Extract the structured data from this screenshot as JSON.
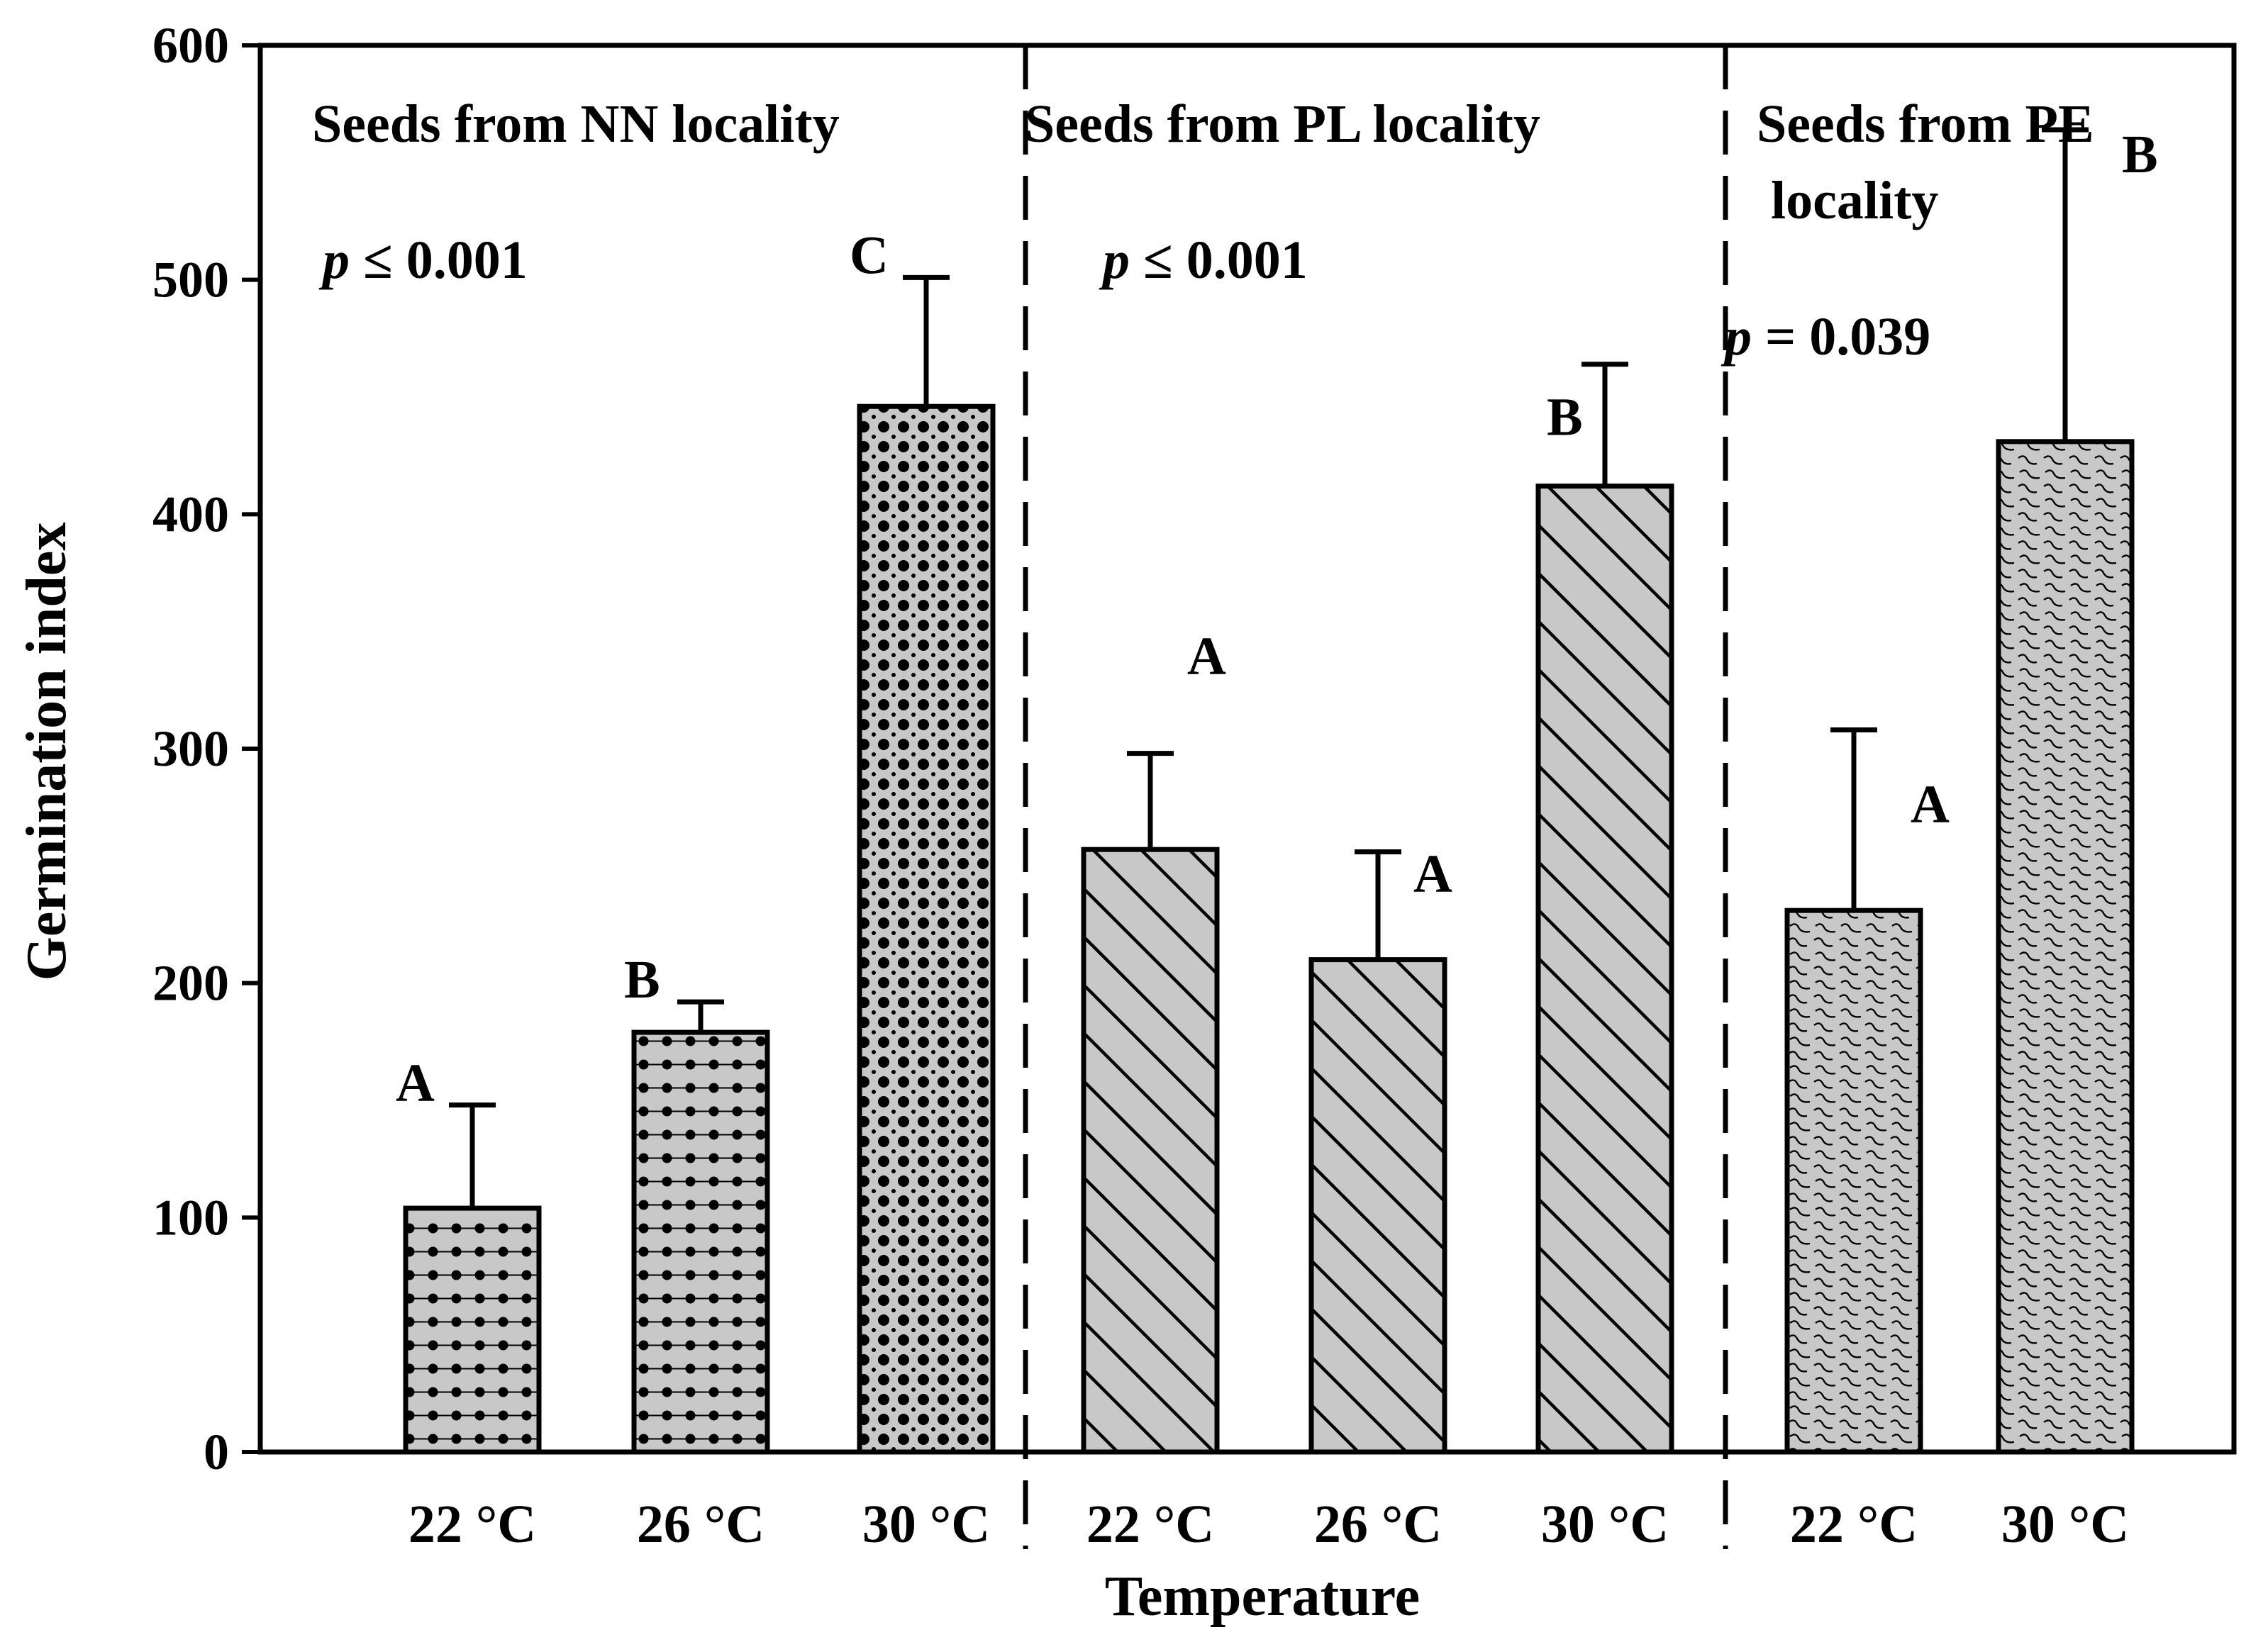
{
  "chart_data": {
    "type": "bar",
    "ylabel": "Germination index",
    "xlabel": "Temperature",
    "ylim": [
      0,
      600
    ],
    "yticks": [
      0,
      100,
      200,
      300,
      400,
      500,
      600
    ],
    "grid": false,
    "groups": [
      {
        "title_lines": [
          "Seeds from NN locality"
        ],
        "p_symbol": "p",
        "p_text": " ≤ 0.001",
        "bars": [
          {
            "category": "22 °C",
            "value": 104,
            "error": 44,
            "label": "A",
            "pattern": "dots-grid"
          },
          {
            "category": "26 °C",
            "value": 179,
            "error": 13,
            "label": "B",
            "pattern": "dots-grid"
          },
          {
            "category": "30 °C",
            "value": 446,
            "error": 55,
            "label": "C",
            "pattern": "dots-dense"
          }
        ]
      },
      {
        "title_lines": [
          "Seeds from PL locality"
        ],
        "p_symbol": "p",
        "p_text": " ≤ 0.001",
        "bars": [
          {
            "category": "22 °C",
            "value": 257,
            "error": 41,
            "label": "A",
            "pattern": "diagonal"
          },
          {
            "category": "26 °C",
            "value": 210,
            "error": 46,
            "label": "A",
            "pattern": "diagonal"
          },
          {
            "category": "30 °C",
            "value": 412,
            "error": 52,
            "label": "B",
            "pattern": "diagonal"
          }
        ]
      },
      {
        "title_lines": [
          "Seeds from PE",
          "locality"
        ],
        "p_symbol": "p",
        "p_text": " = 0.039",
        "bars": [
          {
            "category": "22 °C",
            "value": 231,
            "error": 77,
            "label": "A",
            "pattern": "wave"
          },
          {
            "category": "30 °C",
            "value": 431,
            "error": 133,
            "label": "B",
            "pattern": "wave"
          }
        ]
      }
    ]
  }
}
